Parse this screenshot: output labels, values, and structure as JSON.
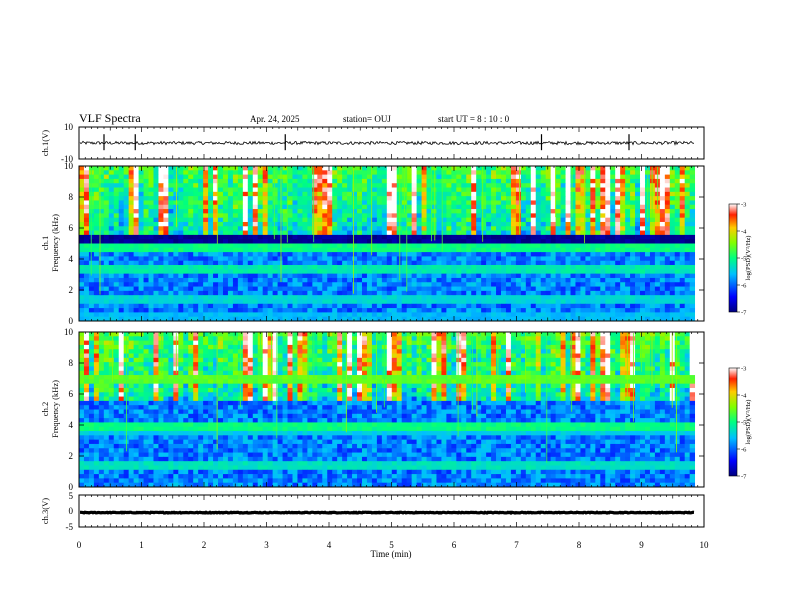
{
  "header": {
    "title": "VLF Spectra",
    "date": "Apr. 24, 2025",
    "station": "station= OUJ",
    "start": "start  UT  =   8  : 10 : 0"
  },
  "chart_data": [
    {
      "type": "line",
      "name": "ch1-waveform",
      "ylabel": "ch.1(V)",
      "xlim": [
        0,
        10
      ],
      "ylim": [
        -10,
        10
      ],
      "yticks": [
        "10",
        "-10"
      ],
      "baseline": 0,
      "amplitude": 1,
      "spike_times_min": [
        0.4,
        0.9,
        3.3,
        7.4,
        8.8
      ],
      "end_min": 9.85
    },
    {
      "type": "heatmap",
      "name": "ch1-spectrogram",
      "ylabel_top": "ch.1",
      "ylabel": "Frequency (kHz)",
      "xlim": [
        0,
        10
      ],
      "ylim": [
        0,
        10
      ],
      "yticks": [
        "0",
        "2",
        "4",
        "6",
        "8",
        "10"
      ],
      "end_min": 9.85,
      "colorbar": {
        "label": "log(PSD)(V²/Hz)",
        "range": [
          -7,
          -3
        ],
        "ticks": [
          "-3",
          "-4",
          "-5",
          "-6",
          "-7"
        ]
      },
      "bands": [
        {
          "f_khz": 1.5,
          "level": -5.4
        },
        {
          "f_khz": 0.4,
          "level": -5.6
        },
        {
          "f_khz": 3.4,
          "level": -5.2
        },
        {
          "f_khz": 4.6,
          "level": -5.0
        },
        {
          "f_khz": 5.2,
          "level": -6.9
        }
      ]
    },
    {
      "type": "heatmap",
      "name": "ch2-spectrogram",
      "ylabel_top": "ch.2",
      "ylabel": "Frequency (kHz)",
      "xlim": [
        0,
        10
      ],
      "ylim": [
        0,
        10
      ],
      "yticks": [
        "0",
        "2",
        "4",
        "6",
        "8",
        "10"
      ],
      "end_min": 9.85,
      "colorbar": {
        "label": "log(PSD)(V²/Hz)",
        "range": [
          -7,
          -3
        ],
        "ticks": [
          "-3",
          "-4",
          "-5",
          "-6",
          "-7"
        ]
      },
      "bands": [
        {
          "f_khz": 1.3,
          "level": -5.3
        },
        {
          "f_khz": 3.5,
          "level": -5.5
        },
        {
          "f_khz": 6.9,
          "level": -4.6
        },
        {
          "f_khz": 4.0,
          "level": -5.0
        }
      ]
    },
    {
      "type": "line",
      "name": "ch3-waveform",
      "ylabel": "ch.3(V)",
      "xlim": [
        0,
        10
      ],
      "ylim": [
        -5,
        5
      ],
      "yticks": [
        "5",
        "0",
        "-5"
      ],
      "baseline": -0.5,
      "amplitude": 0.4,
      "end_min": 9.85
    }
  ],
  "xaxis": {
    "label": "Time  (min)",
    "ticks": [
      "0",
      "1",
      "2",
      "3",
      "4",
      "5",
      "6",
      "7",
      "8",
      "9",
      "10"
    ]
  }
}
